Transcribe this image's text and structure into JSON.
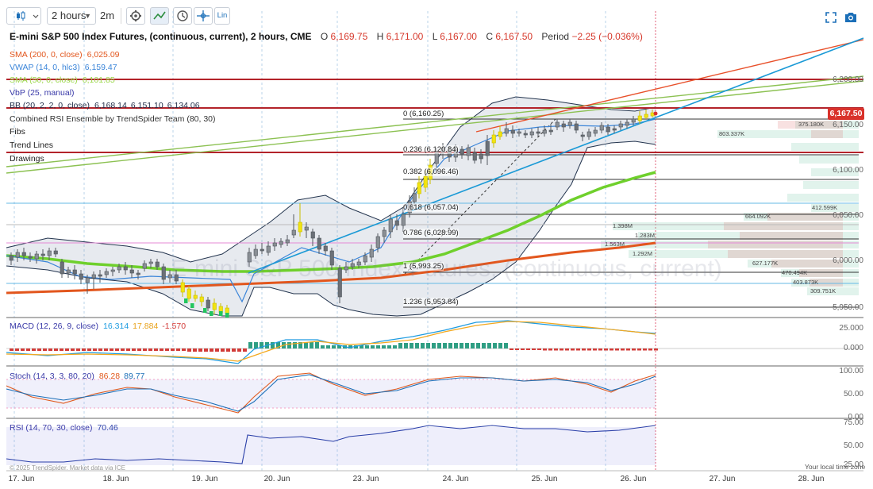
{
  "toolbar": {
    "chart_type_icon": "candlestick-icon",
    "interval": "2 hours",
    "interval_alt": "2m",
    "scale": "Lin"
  },
  "header": {
    "title": "E-mini S&P 500 Index Futures, (continuous, current), 2 hours, CME",
    "open_label": "O",
    "open": "6,169.75",
    "high_label": "H",
    "high": "6,171.00",
    "low_label": "L",
    "low": "6,167.00",
    "close_label": "C",
    "close": "6,167.50",
    "period_label": "Period",
    "period": "−2.25 (−0.036%)"
  },
  "indicators": {
    "sma200": {
      "label": "SMA (200, 0, close)",
      "value": "6,025.09"
    },
    "vwap": {
      "label": "VWAP (14, 0, hlc3)",
      "value": "6,159.47"
    },
    "sma50": {
      "label": "SMA (50, 0, close)",
      "value": "6,101.85"
    },
    "vbp": {
      "label": "VbP (25, manual)"
    },
    "bb": {
      "label": "BB (20, 2, 2, 0, close)",
      "v1": "6,168.14",
      "v2": "6,151.10",
      "v3": "6,134.06"
    },
    "rsi_ensemble": {
      "label": "Combined RSI Ensemble by TrendSpider Team (80, 30)"
    },
    "fibs": "Fibs",
    "trend_lines": "Trend Lines",
    "drawings": "Drawings"
  },
  "fib_levels": [
    {
      "label": "0 (6,160.25)"
    },
    {
      "label": "0.236 (6,120.84)"
    },
    {
      "label": "0.382 (6,096.46)"
    },
    {
      "label": "0.618 (6,057.04)"
    },
    {
      "label": "0.786 (6,028.99)"
    },
    {
      "label": "1 (5,993.25)"
    },
    {
      "label": "1.236 (5,953.84)"
    }
  ],
  "vbp_labels": [
    "375.180K",
    "803.337K",
    "412.599K",
    "664.092K",
    "1.398M",
    "1.283M",
    "1.563M",
    "1.292M",
    "627.177K",
    "470.494K",
    "403.873K",
    "309.751K"
  ],
  "price_axis": [
    "6,200.00",
    "6,150.00",
    "6,100.00",
    "6,050.00",
    "6,000.00",
    "5,950.00"
  ],
  "current_price": "6,167.50",
  "macd": {
    "label": "MACD (12, 26, 9, close)",
    "v1": "16.314",
    "v2": "17.884",
    "v3": "-1.570",
    "axis": [
      "25.000",
      "0.000"
    ]
  },
  "stoch": {
    "label": "Stoch (14, 3, 3, 80, 20)",
    "v1": "86.28",
    "v2": "89.77",
    "axis": [
      "100.00",
      "50.00",
      "0.00"
    ]
  },
  "rsi": {
    "label": "RSI (14, 70, 30, close)",
    "value": "70.46",
    "axis": [
      "75.00",
      "50.00",
      "25.00"
    ]
  },
  "time_axis": [
    "17. Jun",
    "18. Jun",
    "19. Jun",
    "20. Jun",
    "23. Jun",
    "24. Jun",
    "25. Jun",
    "26. Jun",
    "27. Jun",
    "28. Jun"
  ],
  "footer": {
    "copyright": "© 2025 TrendSpider. Market data via ICE",
    "local_time": "Your local time zone"
  },
  "watermark": "E-mini S&P 500 Index Futures, (continuous, current)",
  "colors": {
    "up": "#3c9a6a",
    "down": "#d23b38",
    "yellow": "#f2e40f",
    "green_up": "#22c55e",
    "sma50": "#6fd02c",
    "sma200": "#e2561d",
    "vwap": "#3b85d9",
    "trend_blue": "#1b9ad6",
    "trend_red": "#e8502a",
    "trend_green": "#8cc152",
    "resistance": "#b3232a",
    "bb": "#23344e",
    "macd_line": "#1d9be0",
    "signal": "#f3a81e"
  }
}
